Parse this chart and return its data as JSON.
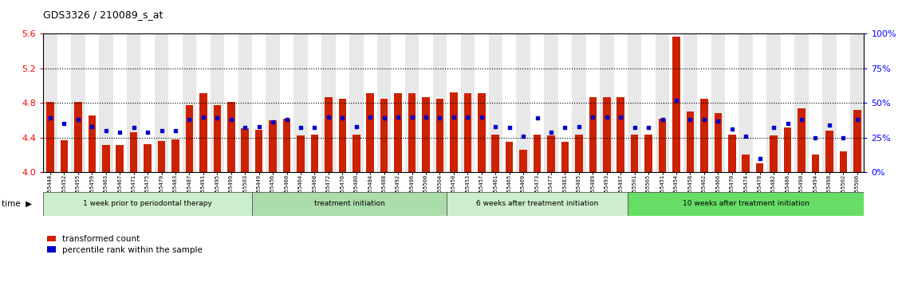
{
  "title": "GDS3326 / 210089_s_at",
  "samples": [
    "GSM155448",
    "GSM155452",
    "GSM155455",
    "GSM155459",
    "GSM155463",
    "GSM155467",
    "GSM155471",
    "GSM155475",
    "GSM155479",
    "GSM155483",
    "GSM155487",
    "GSM155491",
    "GSM155495",
    "GSM155499",
    "GSM155503",
    "GSM155449",
    "GSM155456",
    "GSM155460",
    "GSM155464",
    "GSM155468",
    "GSM155472",
    "GSM155476",
    "GSM155480",
    "GSM155484",
    "GSM155488",
    "GSM155492",
    "GSM155496",
    "GSM155500",
    "GSM155504",
    "GSM155450",
    "GSM155453",
    "GSM155457",
    "GSM155461",
    "GSM155465",
    "GSM155469",
    "GSM155473",
    "GSM155477",
    "GSM155481",
    "GSM155485",
    "GSM155489",
    "GSM155493",
    "GSM155497",
    "GSM155501",
    "GSM155505",
    "GSM155451",
    "GSM155454",
    "GSM155458",
    "GSM155462",
    "GSM155466",
    "GSM155470",
    "GSM155474",
    "GSM155478",
    "GSM155482",
    "GSM155486",
    "GSM155490",
    "GSM155494",
    "GSM155498",
    "GSM155502",
    "GSM155506"
  ],
  "transformed_counts": [
    4.81,
    4.37,
    4.81,
    4.65,
    4.31,
    4.31,
    4.46,
    4.32,
    4.36,
    4.38,
    4.77,
    4.91,
    4.77,
    4.81,
    4.51,
    4.49,
    4.6,
    4.62,
    4.42,
    4.43,
    4.87,
    4.85,
    4.43,
    4.91,
    4.85,
    4.91,
    4.91,
    4.87,
    4.85,
    4.92,
    4.91,
    4.91,
    4.43,
    4.35,
    4.26,
    4.43,
    4.42,
    4.35,
    4.43,
    4.87,
    4.87,
    4.87,
    4.43,
    4.43,
    4.62,
    5.57,
    4.7,
    4.85,
    4.68,
    4.43,
    4.2,
    4.1,
    4.42,
    4.52,
    4.74,
    4.2,
    4.48,
    4.24,
    4.72
  ],
  "percentile_ranks": [
    39,
    35,
    38,
    33,
    30,
    29,
    32,
    29,
    30,
    30,
    38,
    40,
    39,
    38,
    32,
    33,
    36,
    38,
    32,
    32,
    40,
    39,
    33,
    40,
    39,
    40,
    40,
    40,
    39,
    40,
    40,
    40,
    33,
    32,
    26,
    39,
    29,
    32,
    33,
    40,
    40,
    40,
    32,
    32,
    38,
    52,
    38,
    38,
    37,
    31,
    26,
    10,
    32,
    35,
    38,
    25,
    34,
    25,
    38
  ],
  "group_boundaries": [
    0,
    15,
    29,
    42,
    59
  ],
  "group_labels": [
    "1 week prior to periodontal therapy",
    "treatment initiation",
    "6 weeks after treatment initiation",
    "10 weeks after treatment initiation"
  ],
  "group_colors": [
    "#d5f5d5",
    "#b0eeb0",
    "#d5f5d5",
    "#77ee77"
  ],
  "ylim_left": [
    4.0,
    5.6
  ],
  "yticks_left": [
    4.0,
    4.4,
    4.8,
    5.2,
    5.6
  ],
  "yticks_right": [
    0,
    25,
    50,
    75,
    100
  ],
  "hlines": [
    4.4,
    4.8,
    5.2
  ],
  "bar_color": "#cc2200",
  "percentile_color": "#0000cc",
  "bar_width": 0.55,
  "bar_bottom": 4.0
}
